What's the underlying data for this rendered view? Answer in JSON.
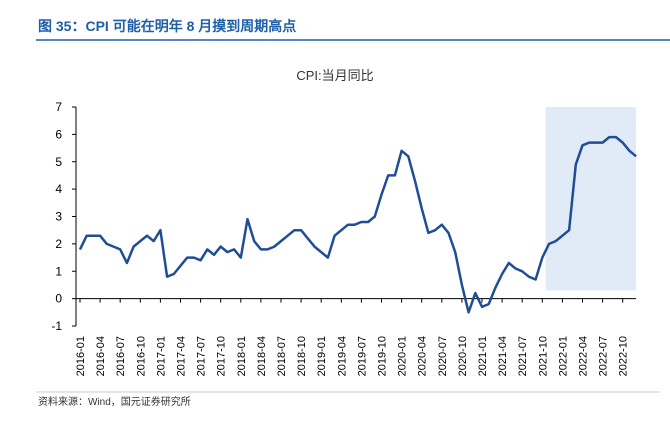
{
  "header": {
    "title": "图 35：CPI 可能在明年 8 月摸到周期高点"
  },
  "chart_data": {
    "type": "line",
    "title": "CPI:当月同比",
    "categories": [
      "2016-01",
      null,
      null,
      "2016-04",
      null,
      null,
      "2016-07",
      null,
      null,
      "2016-10",
      null,
      null,
      "2017-01",
      null,
      null,
      "2017-04",
      null,
      null,
      "2017-07",
      null,
      null,
      "2017-10",
      null,
      null,
      "2018-01",
      null,
      null,
      "2018-04",
      null,
      null,
      "2018-07",
      null,
      null,
      "2018-10",
      null,
      null,
      "2019-01",
      null,
      null,
      "2019-04",
      null,
      null,
      "2019-07",
      null,
      null,
      "2019-10",
      null,
      null,
      "2020-01",
      null,
      null,
      "2020-04",
      null,
      null,
      "2020-07",
      null,
      null,
      "2020-10",
      null,
      null,
      "2021-01",
      null,
      null,
      "2021-04",
      null,
      null,
      "2021-07",
      null,
      null,
      "2021-10",
      null,
      null,
      "2022-01",
      null,
      null,
      "2022-04",
      null,
      null,
      "2022-07",
      null,
      null,
      "2022-10",
      null,
      null
    ],
    "values": [
      1.8,
      2.3,
      2.3,
      2.3,
      2.0,
      1.9,
      1.8,
      1.3,
      1.9,
      2.1,
      2.3,
      2.1,
      2.5,
      0.8,
      0.9,
      1.2,
      1.5,
      1.5,
      1.4,
      1.8,
      1.6,
      1.9,
      1.7,
      1.8,
      1.5,
      2.9,
      2.1,
      1.8,
      1.8,
      1.9,
      2.1,
      2.3,
      2.5,
      2.5,
      2.2,
      1.9,
      1.7,
      1.5,
      2.3,
      2.5,
      2.7,
      2.7,
      2.8,
      2.8,
      3.0,
      3.8,
      4.5,
      4.5,
      5.4,
      5.2,
      4.3,
      3.3,
      2.4,
      2.5,
      2.7,
      2.4,
      1.7,
      0.5,
      -0.5,
      0.2,
      -0.3,
      -0.2,
      0.4,
      0.9,
      1.3,
      1.1,
      1.0,
      0.8,
      0.7,
      1.5,
      2.0,
      2.1,
      2.3,
      2.5,
      4.9,
      5.6,
      5.7,
      5.7,
      5.7,
      5.9,
      5.9,
      5.7,
      5.4,
      5.2
    ],
    "color": "#1f4e96",
    "ylim": [
      -1,
      7
    ],
    "yticks": [
      -1,
      0,
      1,
      2,
      3,
      4,
      5,
      6,
      7
    ],
    "highlight": {
      "from": "2021-11",
      "to": "2022-12",
      "color": "#e1ebf7",
      "ylim": [
        0.3,
        7
      ]
    },
    "source": "资料来源：Wind，国元证券研究所"
  }
}
